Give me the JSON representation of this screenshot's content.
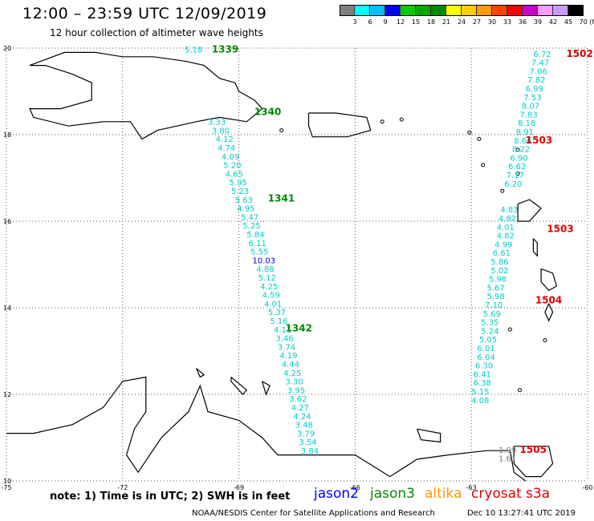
{
  "header": {
    "title": "12:00 – 23:59 UTC 12/09/2019",
    "subtitle": "12 hour collection of altimeter wave heights"
  },
  "colorbar": {
    "colors": [
      "#808080",
      "#00ffff",
      "#00bfff",
      "#0000ff",
      "#00cc00",
      "#00aa00",
      "#008800",
      "#ffff00",
      "#ffcc00",
      "#ff9900",
      "#ff4400",
      "#ff0000",
      "#cc00cc",
      "#ff99ff",
      "#cc99ff",
      "#000000"
    ],
    "labels": [
      "3",
      "6",
      "9",
      "12",
      "15",
      "18",
      "21",
      "24",
      "27",
      "30",
      "33",
      "36",
      "39",
      "42",
      "45",
      "70 (ft)"
    ]
  },
  "axes": {
    "lat_labels": [
      "20",
      "18",
      "16",
      "14",
      "12",
      "10"
    ],
    "lon_labels": [
      "-75",
      "-72",
      "-69",
      "-66",
      "-63",
      "-60"
    ]
  },
  "passes": [
    {
      "id": "1339",
      "color": "#008800",
      "lat": 19.9,
      "lon": -69.7
    },
    {
      "id": "1340",
      "color": "#008800",
      "lat": 18.45,
      "lon": -68.6
    },
    {
      "id": "1341",
      "color": "#008800",
      "lat": 16.45,
      "lon": -68.25
    },
    {
      "id": "1342",
      "color": "#008800",
      "lat": 13.45,
      "lon": -67.8
    },
    {
      "id": "1502",
      "color": "#dd0000",
      "lat": 19.8,
      "lon": -60.55
    },
    {
      "id": "1503",
      "color": "#dd0000",
      "lat": 17.8,
      "lon": -61.6
    },
    {
      "id": "1503",
      "color": "#dd0000",
      "lat": 15.75,
      "lon": -61.05
    },
    {
      "id": "1504",
      "color": "#dd0000",
      "lat": 14.1,
      "lon": -61.35
    },
    {
      "id": "1505",
      "color": "#dd0000",
      "lat": 10.65,
      "lon": -61.75
    }
  ],
  "swh_labels": [
    {
      "t": "5.18",
      "lat": 19.9,
      "lon": -70.4,
      "c": "#00cccc"
    },
    {
      "t": "3.33",
      "lat": 18.23,
      "lon": -69.8,
      "c": "#00cccc"
    },
    {
      "t": "3.80",
      "lat": 18.03,
      "lon": -69.7,
      "c": "#00cccc"
    },
    {
      "t": "4.12",
      "lat": 17.83,
      "lon": -69.6,
      "c": "#00cccc"
    },
    {
      "t": "4.74",
      "lat": 17.63,
      "lon": -69.55,
      "c": "#00cccc"
    },
    {
      "t": "4.09",
      "lat": 17.43,
      "lon": -69.45,
      "c": "#00cccc"
    },
    {
      "t": "5.20",
      "lat": 17.23,
      "lon": -69.4,
      "c": "#00cccc"
    },
    {
      "t": "4.65",
      "lat": 17.03,
      "lon": -69.35,
      "c": "#00cccc"
    },
    {
      "t": "5.95",
      "lat": 16.83,
      "lon": -69.25,
      "c": "#00cccc"
    },
    {
      "t": "5.23",
      "lat": 16.63,
      "lon": -69.2,
      "c": "#00cccc"
    },
    {
      "t": "5.63",
      "lat": 16.43,
      "lon": -69.1,
      "c": "#00cccc"
    },
    {
      "t": "4.95",
      "lat": 16.23,
      "lon": -69.05,
      "c": "#00cccc"
    },
    {
      "t": "5.47",
      "lat": 16.03,
      "lon": -68.95,
      "c": "#00cccc"
    },
    {
      "t": "5.25",
      "lat": 15.83,
      "lon": -68.9,
      "c": "#00cccc"
    },
    {
      "t": "5.84",
      "lat": 15.63,
      "lon": -68.8,
      "c": "#00cccc"
    },
    {
      "t": "6.11",
      "lat": 15.43,
      "lon": -68.75,
      "c": "#00cccc"
    },
    {
      "t": "5.55",
      "lat": 15.23,
      "lon": -68.7,
      "c": "#00cccc"
    },
    {
      "t": "10.03",
      "lat": 15.03,
      "lon": -68.65,
      "c": "#0000cc"
    },
    {
      "t": "4.88",
      "lat": 14.83,
      "lon": -68.55,
      "c": "#00cccc"
    },
    {
      "t": "5.12",
      "lat": 14.63,
      "lon": -68.5,
      "c": "#00cccc"
    },
    {
      "t": "4.25",
      "lat": 14.43,
      "lon": -68.45,
      "c": "#00cccc"
    },
    {
      "t": "4.59",
      "lat": 14.23,
      "lon": -68.4,
      "c": "#00cccc"
    },
    {
      "t": "4.01",
      "lat": 14.03,
      "lon": -68.35,
      "c": "#00cccc"
    },
    {
      "t": "5.37",
      "lat": 13.83,
      "lon": -68.25,
      "c": "#00cccc"
    },
    {
      "t": "5.16",
      "lat": 13.63,
      "lon": -68.2,
      "c": "#00cccc"
    },
    {
      "t": "4.11",
      "lat": 13.43,
      "lon": -68.1,
      "c": "#00cccc"
    },
    {
      "t": "3.46",
      "lat": 13.23,
      "lon": -68.05,
      "c": "#00cccc"
    },
    {
      "t": "3.74",
      "lat": 13.03,
      "lon": -68.0,
      "c": "#00cccc"
    },
    {
      "t": "4.19",
      "lat": 12.83,
      "lon": -67.95,
      "c": "#00cccc"
    },
    {
      "t": "4.44",
      "lat": 12.63,
      "lon": -67.9,
      "c": "#00cccc"
    },
    {
      "t": "4.25",
      "lat": 12.43,
      "lon": -67.85,
      "c": "#00cccc"
    },
    {
      "t": "3.30",
      "lat": 12.23,
      "lon": -67.8,
      "c": "#00cccc"
    },
    {
      "t": "3.95",
      "lat": 12.03,
      "lon": -67.75,
      "c": "#00cccc"
    },
    {
      "t": "3.62",
      "lat": 11.83,
      "lon": -67.7,
      "c": "#00cccc"
    },
    {
      "t": "4.27",
      "lat": 11.63,
      "lon": -67.65,
      "c": "#00cccc"
    },
    {
      "t": "4.24",
      "lat": 11.43,
      "lon": -67.6,
      "c": "#00cccc"
    },
    {
      "t": "3.48",
      "lat": 11.23,
      "lon": -67.55,
      "c": "#00cccc"
    },
    {
      "t": "3.79",
      "lat": 11.03,
      "lon": -67.5,
      "c": "#00cccc"
    },
    {
      "t": "3.54",
      "lat": 10.83,
      "lon": -67.45,
      "c": "#00cccc"
    },
    {
      "t": "3.84",
      "lat": 10.63,
      "lon": -67.4,
      "c": "#00cccc"
    },
    {
      "t": "6.72",
      "lat": 19.8,
      "lon": -61.4,
      "c": "#00cccc"
    },
    {
      "t": "7.47",
      "lat": 19.6,
      "lon": -61.45,
      "c": "#00cccc"
    },
    {
      "t": "7.06",
      "lat": 19.4,
      "lon": -61.5,
      "c": "#00cccc"
    },
    {
      "t": "7.82",
      "lat": 19.2,
      "lon": -61.55,
      "c": "#00cccc"
    },
    {
      "t": "6.99",
      "lat": 19.0,
      "lon": -61.6,
      "c": "#00cccc"
    },
    {
      "t": "7.53",
      "lat": 18.8,
      "lon": -61.65,
      "c": "#00cccc"
    },
    {
      "t": "8.07",
      "lat": 18.6,
      "lon": -61.7,
      "c": "#00cccc"
    },
    {
      "t": "7.83",
      "lat": 18.4,
      "lon": -61.75,
      "c": "#00cccc"
    },
    {
      "t": "8.18",
      "lat": 18.2,
      "lon": -61.8,
      "c": "#00cccc"
    },
    {
      "t": "8.91",
      "lat": 18.0,
      "lon": -61.85,
      "c": "#00cccc"
    },
    {
      "t": "8.66",
      "lat": 17.8,
      "lon": -61.9,
      "c": "#00cccc"
    },
    {
      "t": "8.22",
      "lat": 17.6,
      "lon": -61.95,
      "c": "#00cccc"
    },
    {
      "t": "6.90",
      "lat": 17.4,
      "lon": -62.0,
      "c": "#00cccc"
    },
    {
      "t": "6.62",
      "lat": 17.2,
      "lon": -62.05,
      "c": "#00cccc"
    },
    {
      "t": "7.17",
      "lat": 17.0,
      "lon": -62.1,
      "c": "#00cccc"
    },
    {
      "t": "6.20",
      "lat": 16.8,
      "lon": -62.15,
      "c": "#00cccc"
    },
    {
      "t": "4.83",
      "lat": 16.2,
      "lon": -62.25,
      "c": "#00cccc"
    },
    {
      "t": "4.82",
      "lat": 16.0,
      "lon": -62.3,
      "c": "#00cccc"
    },
    {
      "t": "4.01",
      "lat": 15.8,
      "lon": -62.35,
      "c": "#00cccc"
    },
    {
      "t": "4.82",
      "lat": 15.6,
      "lon": -62.35,
      "c": "#00cccc"
    },
    {
      "t": "4.99",
      "lat": 15.4,
      "lon": -62.4,
      "c": "#00cccc"
    },
    {
      "t": "6.61",
      "lat": 15.2,
      "lon": -62.45,
      "c": "#00cccc"
    },
    {
      "t": "5.86",
      "lat": 15.0,
      "lon": -62.5,
      "c": "#00cccc"
    },
    {
      "t": "5.02",
      "lat": 14.8,
      "lon": -62.5,
      "c": "#00cccc"
    },
    {
      "t": "5.98",
      "lat": 14.6,
      "lon": -62.55,
      "c": "#00cccc"
    },
    {
      "t": "5.67",
      "lat": 14.4,
      "lon": -62.6,
      "c": "#00cccc"
    },
    {
      "t": "5.98",
      "lat": 14.2,
      "lon": -62.6,
      "c": "#00cccc"
    },
    {
      "t": "7.10",
      "lat": 14.0,
      "lon": -62.65,
      "c": "#00cccc"
    },
    {
      "t": "5.69",
      "lat": 13.8,
      "lon": -62.7,
      "c": "#00cccc"
    },
    {
      "t": "5.35",
      "lat": 13.6,
      "lon": -62.75,
      "c": "#00cccc"
    },
    {
      "t": "5.24",
      "lat": 13.4,
      "lon": -62.75,
      "c": "#00cccc"
    },
    {
      "t": "5.05",
      "lat": 13.2,
      "lon": -62.8,
      "c": "#00cccc"
    },
    {
      "t": "6.01",
      "lat": 13.0,
      "lon": -62.85,
      "c": "#00cccc"
    },
    {
      "t": "6.04",
      "lat": 12.8,
      "lon": -62.85,
      "c": "#00cccc"
    },
    {
      "t": "6.30",
      "lat": 12.6,
      "lon": -62.9,
      "c": "#00cccc"
    },
    {
      "t": "6.41",
      "lat": 12.4,
      "lon": -62.95,
      "c": "#00cccc"
    },
    {
      "t": "6.38",
      "lat": 12.2,
      "lon": -62.95,
      "c": "#00cccc"
    },
    {
      "t": "5.15",
      "lat": 12.0,
      "lon": -63.0,
      "c": "#00cccc"
    },
    {
      "t": "4.08",
      "lat": 11.8,
      "lon": -63.0,
      "c": "#00cccc"
    },
    {
      "t": "1.99",
      "lat": 10.65,
      "lon": -62.3,
      "c": "#808080"
    },
    {
      "t": "1.61",
      "lat": 10.45,
      "lon": -62.3,
      "c": "#808080"
    }
  ],
  "footer": {
    "note": "note: 1) Time is in UTC; 2) SWH is in feet",
    "satellites": [
      {
        "name": "jason2",
        "color": "#0000ff"
      },
      {
        "name": "jason3",
        "color": "#008800"
      },
      {
        "name": "altika",
        "color": "#ff9900"
      },
      {
        "name": "cryosat",
        "color": "#dd0000"
      },
      {
        "name": "s3a",
        "color": "#dd0000"
      }
    ],
    "credit": "NOAA/NESDIS Center for Satellite Applications and Research",
    "timestamp": "Dec 10 13:27:41 UTC 2019"
  }
}
